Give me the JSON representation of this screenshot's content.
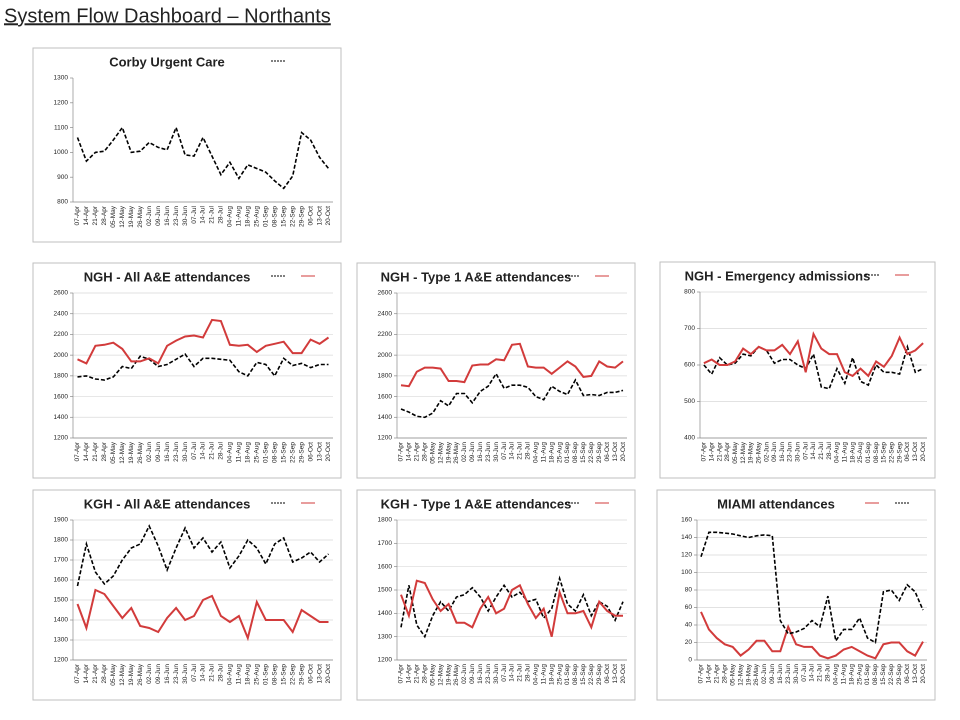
{
  "title": "System Flow Dashboard – Northants",
  "chart_data": [
    {
      "type": "line",
      "title": "Corby Urgent Care",
      "categories": [
        "07-Apr",
        "14-Apr",
        "21-Apr",
        "28-Apr",
        "05-May",
        "12-May",
        "19-May",
        "26-May",
        "02-Jun",
        "09-Jun",
        "16-Jun",
        "23-Jun",
        "30-Jun",
        "07-Jul",
        "14-Jul",
        "21-Jul",
        "28-Jul",
        "04-Aug",
        "11-Aug",
        "18-Aug",
        "25-Aug",
        "01-Sep",
        "08-Sep",
        "15-Sep",
        "22-Sep",
        "29-Sep",
        "06-Oct",
        "13-Oct",
        "20-Oct"
      ],
      "series": [
        {
          "color": "#000000",
          "style": "dashed",
          "values": [
            1060,
            965,
            1000,
            1005,
            1050,
            1100,
            1000,
            1005,
            1040,
            1020,
            1010,
            1100,
            990,
            985,
            1060,
            985,
            910,
            960,
            895,
            950,
            935,
            920,
            885,
            855,
            905,
            1080,
            1050,
            980,
            935
          ]
        }
      ],
      "ylim": [
        800,
        1300
      ],
      "yticks": [
        800,
        900,
        1000,
        1100,
        1200,
        1300
      ],
      "grid": false
    },
    {
      "type": "line",
      "title": "NGH - All A&E attendances",
      "categories": [
        "07-Apr",
        "14-Apr",
        "21-Apr",
        "28-Apr",
        "05-May",
        "12-May",
        "19-May",
        "26-May",
        "02-Jun",
        "09-Jun",
        "16-Jun",
        "23-Jun",
        "30-Jun",
        "07-Jul",
        "14-Jul",
        "21-Jul",
        "28-Jul",
        "04-Aug",
        "11-Aug",
        "18-Aug",
        "25-Aug",
        "01-Sep",
        "08-Sep",
        "15-Sep",
        "22-Sep",
        "29-Sep",
        "06-Oct",
        "13-Oct",
        "20-Oct"
      ],
      "series": [
        {
          "color": "#000000",
          "style": "dashed",
          "values": [
            1790,
            1800,
            1770,
            1760,
            1790,
            1890,
            1870,
            1990,
            1960,
            1890,
            1910,
            1960,
            2010,
            1890,
            1970,
            1970,
            1960,
            1950,
            1840,
            1800,
            1930,
            1910,
            1800,
            1970,
            1900,
            1920,
            1880,
            1910,
            1910
          ]
        },
        {
          "color": "#d23b3b",
          "style": "solid",
          "values": [
            1960,
            1920,
            2090,
            2100,
            2120,
            2060,
            1940,
            1940,
            1970,
            1920,
            2090,
            2140,
            2180,
            2190,
            2170,
            2340,
            2330,
            2100,
            2090,
            2100,
            2030,
            2090,
            2110,
            2130,
            2020,
            2020,
            2150,
            2110,
            2170
          ]
        }
      ],
      "ylim": [
        1200,
        2600
      ],
      "yticks": [
        1200,
        1400,
        1600,
        1800,
        2000,
        2200,
        2400,
        2600
      ],
      "grid": true
    },
    {
      "type": "line",
      "title": "NGH - Type 1 A&E attendances",
      "categories": [
        "07-Apr",
        "14-Apr",
        "21-Apr",
        "28-Apr",
        "05-May",
        "12-May",
        "19-May",
        "26-May",
        "02-Jun",
        "09-Jun",
        "16-Jun",
        "23-Jun",
        "30-Jun",
        "07-Jul",
        "14-Jul",
        "21-Jul",
        "28-Jul",
        "04-Aug",
        "11-Aug",
        "18-Aug",
        "25-Aug",
        "01-Sep",
        "08-Sep",
        "15-Sep",
        "22-Sep",
        "29-Sep",
        "06-Oct",
        "13-Oct",
        "20-Oct"
      ],
      "series": [
        {
          "color": "#000000",
          "style": "dashed",
          "values": [
            1480,
            1450,
            1410,
            1400,
            1440,
            1560,
            1510,
            1630,
            1630,
            1540,
            1650,
            1700,
            1820,
            1680,
            1710,
            1710,
            1690,
            1600,
            1570,
            1700,
            1650,
            1620,
            1760,
            1610,
            1620,
            1610,
            1640,
            1640,
            1660
          ]
        },
        {
          "color": "#d23b3b",
          "style": "solid",
          "values": [
            1710,
            1700,
            1840,
            1880,
            1880,
            1870,
            1750,
            1750,
            1740,
            1900,
            1910,
            1910,
            1960,
            1950,
            2100,
            2110,
            1890,
            1880,
            1880,
            1820,
            1880,
            1940,
            1890,
            1790,
            1800,
            1940,
            1890,
            1880,
            1940
          ]
        }
      ],
      "ylim": [
        1200,
        2600
      ],
      "yticks": [
        1200,
        1400,
        1600,
        1800,
        2000,
        2200,
        2400,
        2600
      ],
      "grid": true
    },
    {
      "type": "line",
      "title": "NGH - Emergency admissions",
      "categories": [
        "07-Apr",
        "14-Apr",
        "21-Apr",
        "28-Apr",
        "05-May",
        "12-May",
        "19-May",
        "26-May",
        "02-Jun",
        "09-Jun",
        "16-Jun",
        "23-Jun",
        "30-Jun",
        "07-Jul",
        "14-Jul",
        "21-Jul",
        "28-Jul",
        "04-Aug",
        "11-Aug",
        "18-Aug",
        "25-Aug",
        "01-Sep",
        "08-Sep",
        "15-Sep",
        "22-Sep",
        "29-Sep",
        "06-Oct",
        "13-Oct",
        "20-Oct"
      ],
      "series": [
        {
          "color": "#000000",
          "style": "dashed",
          "values": [
            600,
            575,
            620,
            600,
            605,
            630,
            625,
            650,
            640,
            605,
            615,
            615,
            600,
            590,
            630,
            540,
            535,
            590,
            550,
            620,
            555,
            545,
            600,
            580,
            580,
            575,
            650,
            580,
            590
          ]
        },
        {
          "color": "#d23b3b",
          "style": "solid",
          "values": [
            605,
            615,
            600,
            600,
            610,
            645,
            630,
            650,
            640,
            640,
            655,
            630,
            665,
            580,
            685,
            645,
            630,
            630,
            580,
            570,
            590,
            570,
            610,
            595,
            625,
            675,
            630,
            640,
            660
          ]
        }
      ],
      "ylim": [
        400,
        800
      ],
      "yticks": [
        400,
        500,
        600,
        700,
        800
      ],
      "grid": true
    },
    {
      "type": "line",
      "title": "KGH - All A&E attendances",
      "categories": [
        "07-Apr",
        "14-Apr",
        "21-Apr",
        "28-Apr",
        "05-May",
        "12-May",
        "19-May",
        "26-May",
        "02-Jun",
        "09-Jun",
        "16-Jun",
        "23-Jun",
        "30-Jun",
        "07-Jul",
        "14-Jul",
        "21-Jul",
        "28-Jul",
        "04-Aug",
        "11-Aug",
        "18-Aug",
        "25-Aug",
        "01-Sep",
        "08-Sep",
        "15-Sep",
        "22-Sep",
        "29-Sep",
        "06-Oct",
        "13-Oct",
        "20-Oct"
      ],
      "series": [
        {
          "color": "#000000",
          "style": "dashed",
          "values": [
            1570,
            1780,
            1640,
            1580,
            1620,
            1700,
            1760,
            1780,
            1870,
            1770,
            1650,
            1760,
            1860,
            1760,
            1810,
            1740,
            1790,
            1660,
            1720,
            1800,
            1760,
            1680,
            1780,
            1810,
            1690,
            1710,
            1740,
            1690,
            1730
          ]
        },
        {
          "color": "#d23b3b",
          "style": "solid",
          "values": [
            1480,
            1360,
            1550,
            1530,
            1470,
            1410,
            1460,
            1370,
            1360,
            1340,
            1410,
            1460,
            1400,
            1420,
            1500,
            1520,
            1420,
            1390,
            1420,
            1310,
            1490,
            1400,
            1400,
            1400,
            1340,
            1450,
            1420,
            1390,
            1390
          ]
        }
      ],
      "ylim": [
        1200,
        1900
      ],
      "yticks": [
        1200,
        1300,
        1400,
        1500,
        1600,
        1700,
        1800,
        1900
      ],
      "grid": true
    },
    {
      "type": "line",
      "title": "KGH - Type 1 A&E attendances",
      "categories": [
        "07-Apr",
        "14-Apr",
        "21-Apr",
        "28-Apr",
        "05-May",
        "12-May",
        "19-May",
        "26-May",
        "02-Jun",
        "09-Jun",
        "16-Jun",
        "23-Jun",
        "30-Jun",
        "07-Jul",
        "14-Jul",
        "21-Jul",
        "28-Jul",
        "04-Aug",
        "11-Aug",
        "18-Aug",
        "25-Aug",
        "01-Sep",
        "08-Sep",
        "15-Sep",
        "22-Sep",
        "29-Sep",
        "06-Oct",
        "13-Oct",
        "20-Oct"
      ],
      "series": [
        {
          "color": "#000000",
          "style": "dashed",
          "values": [
            1340,
            1520,
            1350,
            1300,
            1390,
            1450,
            1410,
            1470,
            1480,
            1510,
            1470,
            1410,
            1470,
            1520,
            1470,
            1490,
            1450,
            1460,
            1380,
            1420,
            1550,
            1440,
            1410,
            1480,
            1390,
            1450,
            1430,
            1370,
            1450
          ]
        },
        {
          "color": "#d23b3b",
          "style": "solid",
          "values": [
            1480,
            1390,
            1540,
            1530,
            1460,
            1410,
            1440,
            1360,
            1360,
            1340,
            1420,
            1470,
            1400,
            1420,
            1500,
            1520,
            1440,
            1380,
            1420,
            1300,
            1490,
            1400,
            1400,
            1410,
            1340,
            1450,
            1410,
            1390,
            1390
          ]
        }
      ],
      "ylim": [
        1200,
        1800
      ],
      "yticks": [
        1200,
        1300,
        1400,
        1500,
        1600,
        1700,
        1800
      ],
      "grid": true
    },
    {
      "type": "line",
      "title": "MIAMI attendances",
      "categories": [
        "07-Apr",
        "14-Apr",
        "21-Apr",
        "28-Apr",
        "05-May",
        "12-May",
        "19-May",
        "26-May",
        "02-Jun",
        "09-Jun",
        "16-Jun",
        "23-Jun",
        "30-Jun",
        "07-Jul",
        "14-Jul",
        "21-Jul",
        "28-Jul",
        "04-Aug",
        "11-Aug",
        "18-Aug",
        "25-Aug",
        "01-Sep",
        "08-Sep",
        "15-Sep",
        "22-Sep",
        "29-Sep",
        "06-Oct",
        "13-Oct",
        "20-Oct"
      ],
      "series": [
        {
          "color": "#d23b3b",
          "style": "solid",
          "values": [
            55,
            35,
            25,
            18,
            15,
            5,
            12,
            22,
            22,
            10,
            10,
            38,
            18,
            15,
            15,
            5,
            2,
            5,
            12,
            15,
            10,
            5,
            2,
            18,
            20,
            20,
            10,
            5,
            21
          ]
        },
        {
          "color": "#000000",
          "style": "dashed",
          "values": [
            118,
            146,
            146,
            145,
            144,
            142,
            140,
            142,
            143,
            142,
            45,
            30,
            32,
            36,
            45,
            38,
            73,
            22,
            35,
            35,
            48,
            25,
            20,
            78,
            80,
            68,
            86,
            78,
            57
          ]
        }
      ],
      "ylim": [
        0,
        160
      ],
      "yticks": [
        0,
        20,
        40,
        60,
        80,
        100,
        120,
        140,
        160
      ],
      "grid": true
    }
  ]
}
